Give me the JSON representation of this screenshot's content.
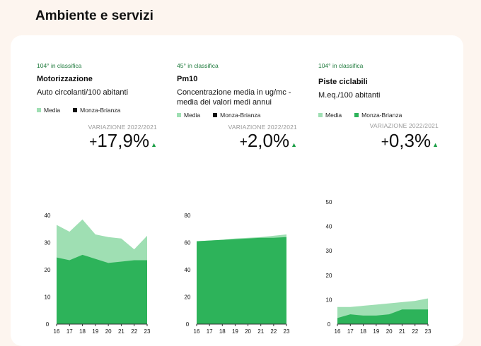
{
  "section_title": "Ambiente e servizi",
  "colors": {
    "media": "#9fdfb3",
    "monza_green": "#2db35a",
    "monza_black": "#111111",
    "arrow": "#1a9e45",
    "rank": "#1e7a3c"
  },
  "panels": [
    {
      "rank": "104° in classifica",
      "title": "Motorizzazione",
      "subtitle": "Auto circolanti/100 abitanti",
      "legend": [
        {
          "label": "Media",
          "color": "#9fdfb3"
        },
        {
          "label": "Monza-Brianza",
          "color": "#111111"
        }
      ],
      "variation_label": "VARIAZIONE 2022/2021",
      "variation_sign": "+",
      "variation_value": "17,9%",
      "arrow_icon": "triangle-up-icon"
    },
    {
      "rank": "45° in classifica",
      "title": "Pm10",
      "subtitle": "Concentrazione media in ug/mc - media dei valori medi annui",
      "legend": [
        {
          "label": "Media",
          "color": "#9fdfb3"
        },
        {
          "label": "Monza-Brianza",
          "color": "#111111"
        }
      ],
      "variation_label": "VARIAZIONE 2022/2021",
      "variation_sign": "+",
      "variation_value": "2,0%",
      "arrow_icon": "triangle-up-icon"
    },
    {
      "rank": "104° in classifica",
      "title": "Piste ciclabili",
      "subtitle": "M.eq./100 abitanti",
      "legend": [
        {
          "label": "Media",
          "color": "#9fdfb3"
        },
        {
          "label": "Monza-Brianza",
          "color": "#2db35a"
        }
      ],
      "variation_label": "VARIAZIONE 2022/2021",
      "variation_sign": "+",
      "variation_value": "0,3%",
      "arrow_icon": "triangle-up-icon"
    }
  ],
  "chart_data": [
    {
      "type": "area",
      "title": "Motorizzazione",
      "x": [
        "16",
        "17",
        "18",
        "19",
        "20",
        "21",
        "22",
        "23"
      ],
      "ylim": [
        0,
        40
      ],
      "yticks": [
        0,
        10,
        20,
        30,
        40
      ],
      "series": [
        {
          "name": "Monza-Brianza",
          "values": [
            24.5,
            23.5,
            25.5,
            24,
            22.5,
            23,
            23.5,
            23.5
          ]
        },
        {
          "name": "Media",
          "values": [
            36.5,
            34,
            38.5,
            33,
            32,
            31.5,
            27.5,
            32.5
          ]
        }
      ]
    },
    {
      "type": "area",
      "title": "Pm10",
      "x": [
        "16",
        "17",
        "18",
        "19",
        "20",
        "21",
        "22",
        "23"
      ],
      "ylim": [
        0,
        80
      ],
      "yticks": [
        0,
        20,
        40,
        60,
        80
      ],
      "series": [
        {
          "name": "Monza-Brianza",
          "values": [
            61,
            61.5,
            62,
            62.5,
            63,
            63.5,
            63.5,
            64
          ]
        },
        {
          "name": "Media",
          "values": [
            61,
            61.5,
            62,
            63,
            63.5,
            64,
            65,
            66
          ]
        }
      ]
    },
    {
      "type": "area",
      "title": "Piste ciclabili",
      "x": [
        "16",
        "17",
        "18",
        "19",
        "20",
        "21",
        "22",
        "23"
      ],
      "ylim": [
        0,
        50
      ],
      "yticks": [
        0,
        10,
        20,
        30,
        40,
        50
      ],
      "series": [
        {
          "name": "Monza-Brianza",
          "values": [
            2.5,
            4,
            3.5,
            3.5,
            4,
            6,
            6,
            6
          ]
        },
        {
          "name": "Media",
          "values": [
            7,
            7,
            7.5,
            8,
            8.5,
            9,
            9.5,
            10.5
          ]
        }
      ]
    }
  ]
}
